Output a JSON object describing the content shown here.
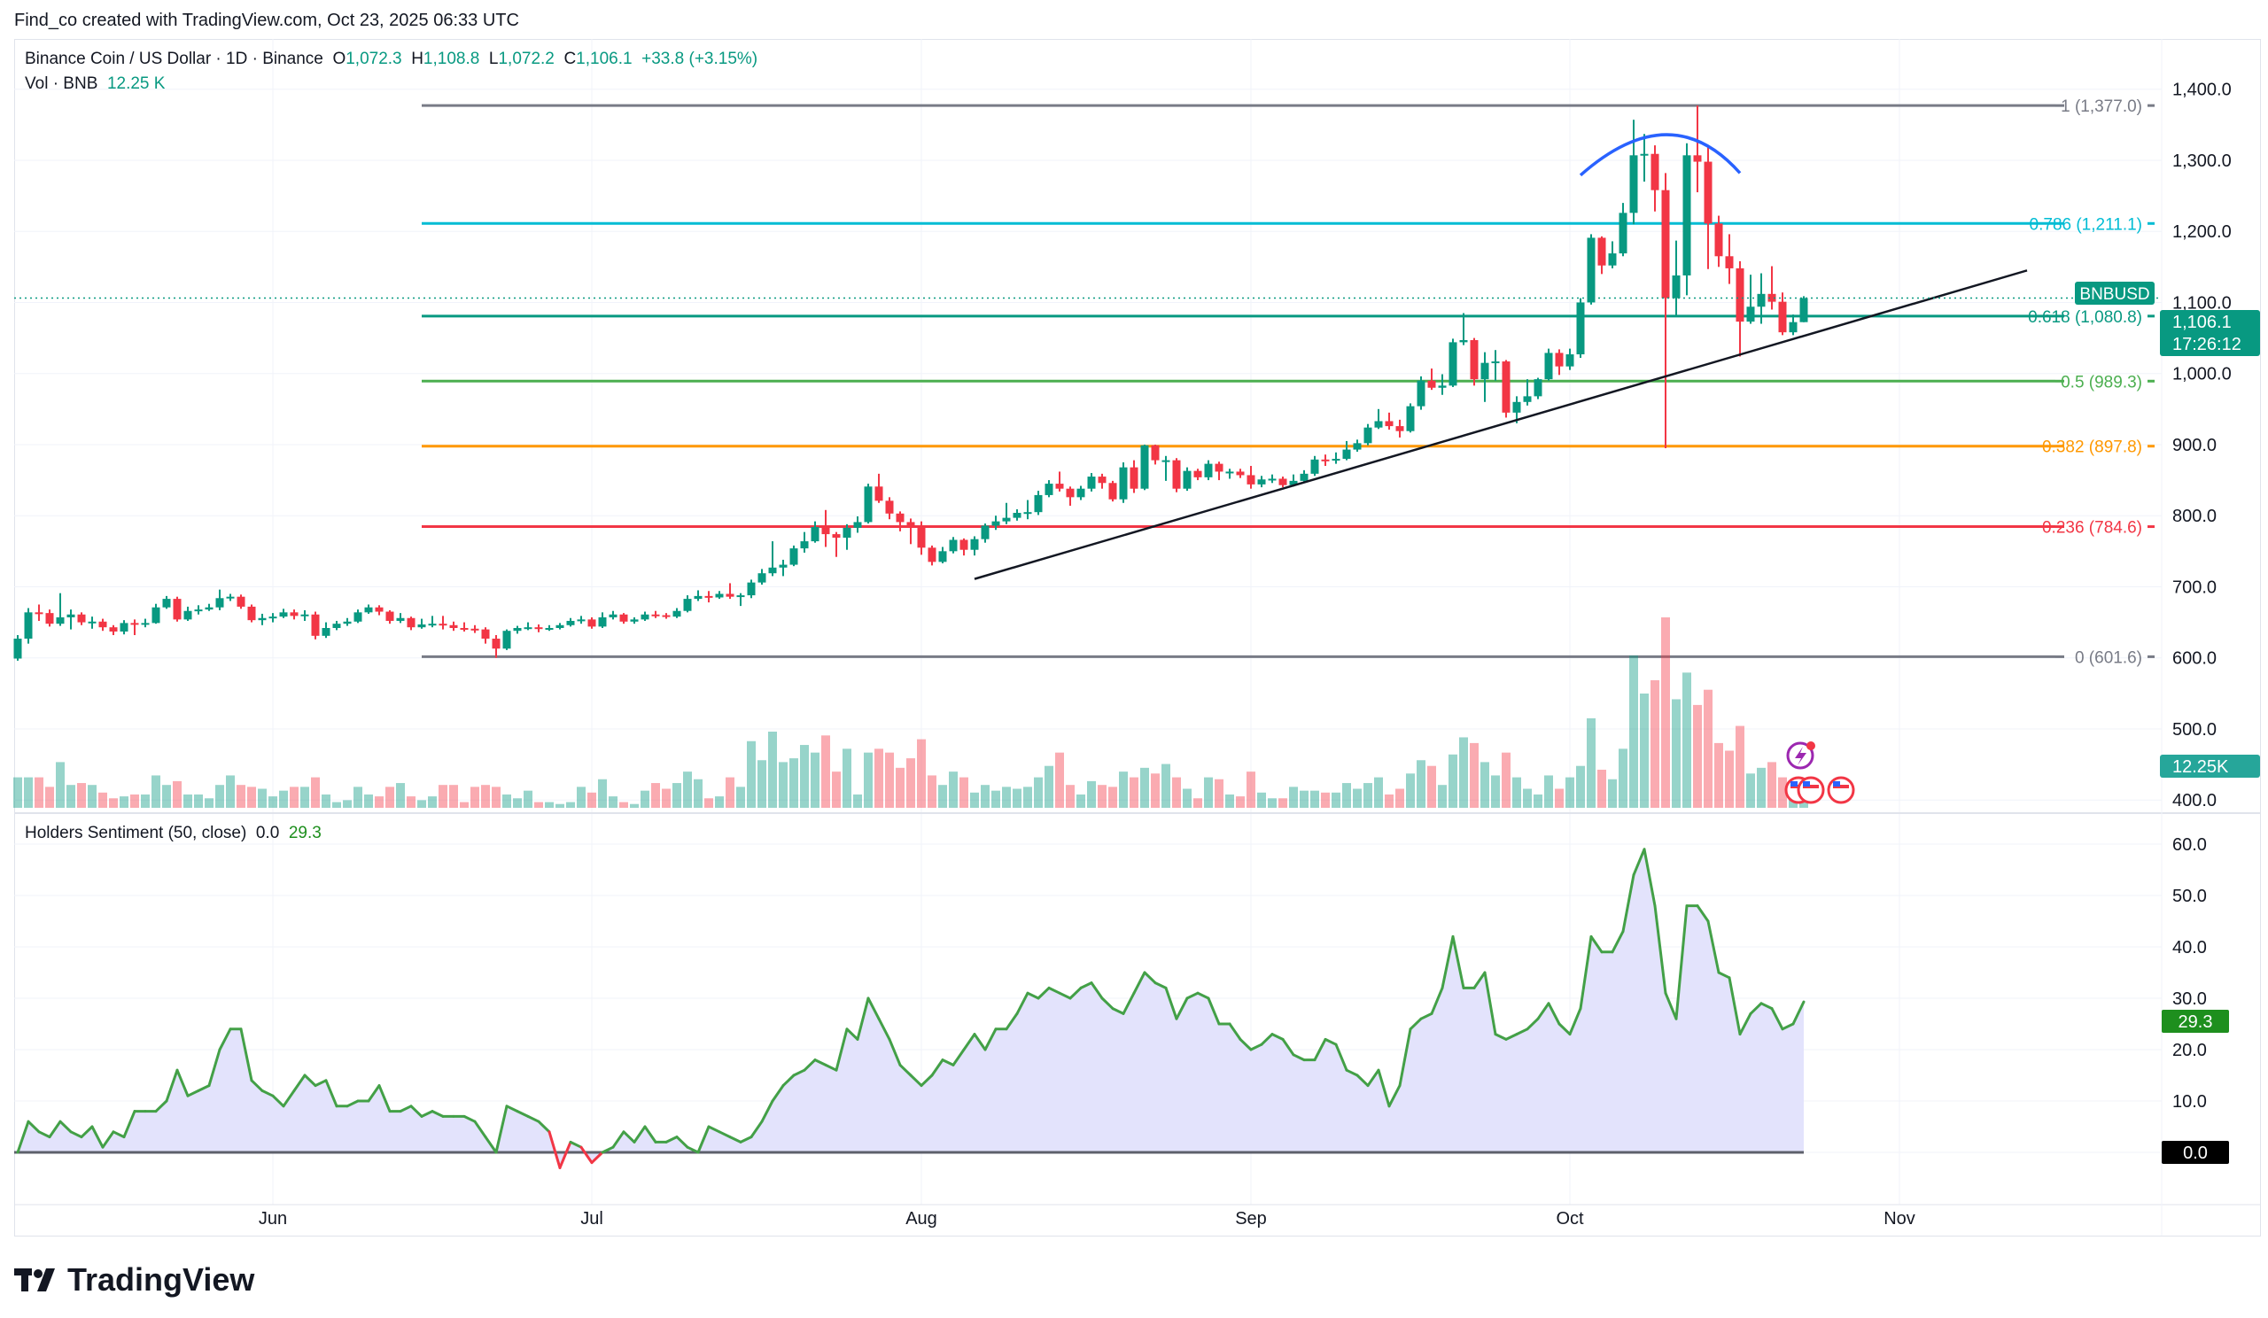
{
  "credit": "Find_co created with TradingView.com, Oct 23, 2025 06:33 UTC",
  "legend": {
    "symbol_title": "Binance Coin / US Dollar · 1D · Binance",
    "o_label": "O",
    "o": "1,072.3",
    "h_label": "H",
    "h": "1,108.8",
    "l_label": "L",
    "l": "1,072.2",
    "c_label": "C",
    "c": "1,106.1",
    "change": "+33.8 (+3.15%)",
    "vol_label": "Vol · BNB",
    "vol": "12.25 K"
  },
  "indicator": {
    "title": "Holders Sentiment (50, close)",
    "v1": "0.0",
    "v2": "29.3"
  },
  "brand": "TradingView",
  "price_axis": [
    "1,400.0",
    "1,300.0",
    "1,200.0",
    "1,100.0",
    "1,000.0",
    "900.0",
    "800.0",
    "700.0",
    "600.0",
    "500.0",
    "400.0"
  ],
  "sentiment_axis": [
    "60.0",
    "50.0",
    "40.0",
    "30.0",
    "20.0",
    "10.0"
  ],
  "sentiment_zero_label": "0.0",
  "sentiment_last_label": "29.3",
  "time_axis": [
    {
      "label": "Jun",
      "date": "2025-06-01"
    },
    {
      "label": "Jul",
      "date": "2025-07-01"
    },
    {
      "label": "Aug",
      "date": "2025-08-01"
    },
    {
      "label": "Sep",
      "date": "2025-09-01"
    },
    {
      "label": "Oct",
      "date": "2025-10-01"
    },
    {
      "label": "Nov",
      "date": "2025-11-01"
    }
  ],
  "price_tag": {
    "symbol": "BNBUSD",
    "price": "1,106.1",
    "countdown": "17:26:12"
  },
  "volume_tag": "12.25K",
  "colors": {
    "up": "#089981",
    "down": "#f23645",
    "sentiment_line": "#43a047",
    "sentiment_fill": "#e3e3fc",
    "trendline": "#131722",
    "arc": "#2962ff"
  },
  "fib_levels": [
    {
      "label": "1 (1,377.0)",
      "price": 1377.0,
      "color": "#787b86"
    },
    {
      "label": "0.786 (1,211.1)",
      "price": 1211.1,
      "color": "#00bcd4"
    },
    {
      "label": "0.618 (1,080.8)",
      "price": 1080.8,
      "color": "#089981"
    },
    {
      "label": "0.5 (989.3)",
      "price": 989.3,
      "color": "#4caf50"
    },
    {
      "label": "0.382 (897.8)",
      "price": 897.8,
      "color": "#ff9800"
    },
    {
      "label": "0.236 (784.6)",
      "price": 784.6,
      "color": "#f23645"
    },
    {
      "label": "0 (601.6)",
      "price": 601.6,
      "color": "#787b86"
    }
  ],
  "chart_data": {
    "type": "candlestick",
    "interval": "1D",
    "first_date": "2025-05-08",
    "price_range": [
      400,
      1400
    ],
    "sentiment_range": [
      0,
      60
    ],
    "fib_start_date": "2025-06-15",
    "trendline": [
      [
        "2025-08-06",
        711
      ],
      [
        "2025-11-13",
        1145
      ]
    ],
    "arc": [
      [
        "2025-10-02",
        1279
      ],
      [
        "2025-10-10",
        1336
      ],
      [
        "2025-10-17",
        1282
      ]
    ],
    "candles_ohlcv": [
      [
        599,
        632,
        596,
        627,
        16
      ],
      [
        627,
        670,
        620,
        664,
        16
      ],
      [
        664,
        675,
        652,
        663,
        16
      ],
      [
        663,
        668,
        644,
        648,
        11
      ],
      [
        648,
        691,
        645,
        657,
        24
      ],
      [
        657,
        668,
        640,
        661,
        12
      ],
      [
        661,
        664,
        646,
        650,
        13
      ],
      [
        650,
        658,
        641,
        651,
        12
      ],
      [
        651,
        655,
        638,
        643,
        8
      ],
      [
        643,
        646,
        632,
        637,
        5
      ],
      [
        637,
        653,
        633,
        649,
        6
      ],
      [
        649,
        654,
        632,
        648,
        7
      ],
      [
        648,
        655,
        643,
        649,
        7
      ],
      [
        649,
        676,
        648,
        671,
        17
      ],
      [
        671,
        687,
        669,
        683,
        12
      ],
      [
        683,
        686,
        651,
        654,
        14
      ],
      [
        654,
        672,
        652,
        666,
        7
      ],
      [
        666,
        674,
        661,
        668,
        7
      ],
      [
        668,
        676,
        666,
        671,
        5
      ],
      [
        671,
        696,
        667,
        684,
        12
      ],
      [
        684,
        690,
        680,
        686,
        17
      ],
      [
        686,
        689,
        669,
        672,
        12
      ],
      [
        672,
        675,
        650,
        653,
        11
      ],
      [
        653,
        662,
        646,
        656,
        10
      ],
      [
        656,
        663,
        650,
        658,
        6
      ],
      [
        658,
        669,
        656,
        664,
        9
      ],
      [
        664,
        668,
        654,
        659,
        11
      ],
      [
        659,
        667,
        652,
        661,
        11
      ],
      [
        661,
        665,
        626,
        631,
        16
      ],
      [
        631,
        650,
        628,
        642,
        7
      ],
      [
        642,
        652,
        639,
        648,
        3
      ],
      [
        648,
        656,
        645,
        651,
        4
      ],
      [
        651,
        668,
        649,
        664,
        11
      ],
      [
        664,
        675,
        662,
        671,
        7
      ],
      [
        671,
        674,
        660,
        665,
        6
      ],
      [
        665,
        667,
        648,
        652,
        11
      ],
      [
        652,
        663,
        649,
        656,
        13
      ],
      [
        656,
        658,
        639,
        643,
        6
      ],
      [
        643,
        655,
        641,
        647,
        4
      ],
      [
        647,
        659,
        643,
        648,
        6
      ],
      [
        648,
        659,
        640,
        646,
        12
      ],
      [
        646,
        651,
        638,
        642,
        12
      ],
      [
        642,
        650,
        637,
        641,
        3
      ],
      [
        641,
        646,
        635,
        640,
        11
      ],
      [
        640,
        643,
        620,
        627,
        12
      ],
      [
        627,
        632,
        600,
        613,
        11
      ],
      [
        613,
        640,
        611,
        638,
        7
      ],
      [
        638,
        645,
        634,
        642,
        5
      ],
      [
        642,
        650,
        639,
        643,
        9
      ],
      [
        643,
        647,
        636,
        641,
        3
      ],
      [
        641,
        646,
        638,
        642,
        3
      ],
      [
        642,
        649,
        640,
        646,
        2
      ],
      [
        646,
        656,
        644,
        652,
        3
      ],
      [
        652,
        659,
        648,
        654,
        11
      ],
      [
        654,
        657,
        641,
        644,
        8
      ],
      [
        644,
        664,
        642,
        657,
        15
      ],
      [
        657,
        666,
        654,
        661,
        6
      ],
      [
        661,
        663,
        648,
        651,
        3
      ],
      [
        651,
        657,
        648,
        654,
        2
      ],
      [
        654,
        665,
        652,
        661,
        9
      ],
      [
        661,
        666,
        656,
        660,
        13
      ],
      [
        660,
        663,
        655,
        658,
        10
      ],
      [
        658,
        670,
        656,
        666,
        13
      ],
      [
        666,
        688,
        664,
        683,
        19
      ],
      [
        683,
        695,
        680,
        687,
        15
      ],
      [
        687,
        694,
        678,
        685,
        5
      ],
      [
        685,
        694,
        683,
        690,
        6
      ],
      [
        690,
        705,
        683,
        686,
        16
      ],
      [
        686,
        691,
        673,
        688,
        11
      ],
      [
        688,
        710,
        684,
        706,
        35
      ],
      [
        706,
        725,
        703,
        719,
        25
      ],
      [
        719,
        764,
        715,
        727,
        40
      ],
      [
        727,
        738,
        715,
        731,
        24
      ],
      [
        731,
        758,
        729,
        754,
        26
      ],
      [
        754,
        777,
        748,
        764,
        33
      ],
      [
        764,
        792,
        762,
        784,
        29
      ],
      [
        784,
        808,
        756,
        774,
        38
      ],
      [
        774,
        777,
        742,
        769,
        19
      ],
      [
        769,
        788,
        752,
        783,
        31
      ],
      [
        783,
        799,
        776,
        791,
        7
      ],
      [
        791,
        845,
        789,
        841,
        29
      ],
      [
        841,
        859,
        818,
        821,
        31
      ],
      [
        821,
        826,
        795,
        803,
        29
      ],
      [
        803,
        806,
        778,
        791,
        21
      ],
      [
        791,
        796,
        760,
        783,
        26
      ],
      [
        783,
        792,
        745,
        755,
        36
      ],
      [
        755,
        758,
        730,
        735,
        17
      ],
      [
        735,
        756,
        733,
        750,
        12
      ],
      [
        750,
        770,
        747,
        766,
        19
      ],
      [
        766,
        768,
        744,
        752,
        16
      ],
      [
        752,
        771,
        744,
        767,
        8
      ],
      [
        767,
        789,
        762,
        786,
        12
      ],
      [
        786,
        800,
        780,
        792,
        9
      ],
      [
        792,
        818,
        788,
        797,
        11
      ],
      [
        797,
        809,
        793,
        804,
        10
      ],
      [
        804,
        822,
        795,
        805,
        11
      ],
      [
        805,
        835,
        801,
        829,
        16
      ],
      [
        829,
        850,
        826,
        845,
        22
      ],
      [
        845,
        862,
        834,
        838,
        29
      ],
      [
        838,
        841,
        814,
        826,
        12
      ],
      [
        826,
        842,
        822,
        838,
        7
      ],
      [
        838,
        860,
        834,
        855,
        14
      ],
      [
        855,
        859,
        838,
        846,
        12
      ],
      [
        846,
        849,
        820,
        823,
        11
      ],
      [
        823,
        875,
        818,
        868,
        19
      ],
      [
        868,
        878,
        832,
        838,
        16
      ],
      [
        838,
        900,
        836,
        899,
        21
      ],
      [
        899,
        900,
        872,
        878,
        18
      ],
      [
        878,
        884,
        849,
        878,
        23
      ],
      [
        878,
        881,
        833,
        838,
        16
      ],
      [
        838,
        868,
        835,
        863,
        10
      ],
      [
        863,
        866,
        850,
        854,
        5
      ],
      [
        854,
        878,
        850,
        873,
        16
      ],
      [
        873,
        876,
        850,
        862,
        15
      ],
      [
        862,
        866,
        852,
        862,
        7
      ],
      [
        862,
        866,
        853,
        857,
        6
      ],
      [
        857,
        870,
        838,
        844,
        19
      ],
      [
        844,
        856,
        840,
        851,
        8
      ],
      [
        851,
        858,
        846,
        852,
        5
      ],
      [
        852,
        855,
        840,
        843,
        5
      ],
      [
        843,
        858,
        841,
        849,
        11
      ],
      [
        849,
        864,
        846,
        859,
        9
      ],
      [
        859,
        884,
        856,
        879,
        9
      ],
      [
        879,
        886,
        870,
        878,
        8
      ],
      [
        878,
        889,
        873,
        880,
        8
      ],
      [
        880,
        905,
        878,
        893,
        13
      ],
      [
        893,
        907,
        890,
        902,
        10
      ],
      [
        902,
        929,
        899,
        924,
        13
      ],
      [
        924,
        950,
        922,
        933,
        16
      ],
      [
        933,
        945,
        921,
        926,
        7
      ],
      [
        926,
        935,
        910,
        919,
        10
      ],
      [
        919,
        958,
        917,
        954,
        18
      ],
      [
        954,
        996,
        949,
        990,
        25
      ],
      [
        990,
        1007,
        977,
        980,
        22
      ],
      [
        980,
        999,
        970,
        983,
        12
      ],
      [
        983,
        1049,
        981,
        1044,
        28
      ],
      [
        1044,
        1085,
        1040,
        1047,
        37
      ],
      [
        1047,
        1050,
        983,
        992,
        34
      ],
      [
        992,
        1030,
        960,
        1015,
        24
      ],
      [
        1015,
        1033,
        990,
        1017,
        17
      ],
      [
        1017,
        1019,
        938,
        945,
        29
      ],
      [
        945,
        968,
        930,
        960,
        16
      ],
      [
        960,
        992,
        955,
        968,
        10
      ],
      [
        968,
        994,
        964,
        992,
        7
      ],
      [
        992,
        1035,
        990,
        1029,
        17
      ],
      [
        1029,
        1034,
        998,
        1010,
        10
      ],
      [
        1010,
        1035,
        1005,
        1027,
        16
      ],
      [
        1027,
        1106,
        1022,
        1100,
        22
      ],
      [
        1100,
        1196,
        1097,
        1191,
        47
      ],
      [
        1191,
        1193,
        1140,
        1152,
        20
      ],
      [
        1152,
        1186,
        1148,
        1169,
        15
      ],
      [
        1169,
        1240,
        1165,
        1226,
        31
      ],
      [
        1226,
        1357,
        1210,
        1307,
        80
      ],
      [
        1307,
        1337,
        1270,
        1309,
        60
      ],
      [
        1309,
        1321,
        1228,
        1258,
        67
      ],
      [
        1258,
        1282,
        895,
        1106,
        100
      ],
      [
        1106,
        1187,
        1080,
        1138,
        57
      ],
      [
        1138,
        1324,
        1110,
        1307,
        71
      ],
      [
        1307,
        1377,
        1255,
        1298,
        54
      ],
      [
        1298,
        1321,
        1147,
        1211,
        62
      ],
      [
        1211,
        1222,
        1150,
        1165,
        34
      ],
      [
        1165,
        1196,
        1126,
        1148,
        30
      ],
      [
        1148,
        1158,
        1024,
        1073,
        43
      ],
      [
        1073,
        1139,
        1070,
        1094,
        18
      ],
      [
        1094,
        1141,
        1070,
        1112,
        21
      ],
      [
        1112,
        1151,
        1090,
        1101,
        24
      ],
      [
        1101,
        1114,
        1054,
        1058,
        16
      ],
      [
        1058,
        1083,
        1054,
        1072.3,
        7
      ],
      [
        1072.3,
        1108.8,
        1072.2,
        1106.1,
        4
      ]
    ],
    "sentiment": [
      0,
      6,
      4,
      3,
      6,
      4,
      3,
      5,
      1,
      4,
      3,
      8,
      8,
      8,
      10,
      16,
      11,
      12,
      13,
      20,
      24,
      24,
      14,
      12,
      11,
      9,
      12,
      15,
      13,
      14,
      9,
      9,
      10,
      10,
      13,
      8,
      8,
      9,
      7,
      8,
      7,
      7,
      7,
      6,
      3,
      0,
      9,
      8,
      7,
      6,
      4,
      -3,
      2,
      1,
      -2,
      0,
      1,
      4,
      2,
      5,
      2,
      2,
      3,
      1,
      0,
      5,
      4,
      3,
      2,
      3,
      6,
      10,
      13,
      15,
      16,
      18,
      17,
      16,
      24,
      22,
      30,
      26,
      22,
      17,
      15,
      13,
      15,
      18,
      17,
      20,
      23,
      20,
      24,
      24,
      27,
      31,
      30,
      32,
      31,
      30,
      32,
      33,
      30,
      28,
      27,
      31,
      35,
      33,
      32,
      26,
      30,
      31,
      30,
      25,
      25,
      22,
      20,
      21,
      23,
      22,
      19,
      18,
      18,
      22,
      21,
      16,
      15,
      13,
      16,
      9,
      13,
      24,
      26,
      27,
      32,
      42,
      32,
      32,
      35,
      23,
      22,
      23,
      24,
      26,
      29,
      25,
      23,
      28,
      42,
      39,
      39,
      43,
      54,
      59,
      48,
      31,
      26,
      48,
      48,
      45,
      35,
      34,
      23,
      27,
      29,
      28,
      24,
      25,
      29.3
    ]
  }
}
